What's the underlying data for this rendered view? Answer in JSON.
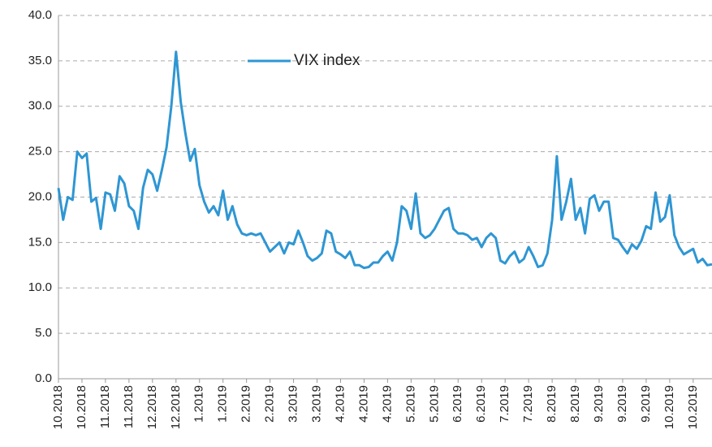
{
  "chart_data": {
    "type": "line",
    "categories": [
      "10.2018",
      null,
      null,
      null,
      null,
      "10.2018",
      null,
      null,
      null,
      null,
      "11.2018",
      null,
      null,
      null,
      null,
      "11.2018",
      null,
      null,
      null,
      null,
      "12.2018",
      null,
      null,
      null,
      null,
      "12.2018",
      null,
      null,
      null,
      null,
      "1.2019",
      null,
      null,
      null,
      null,
      "1.2019",
      null,
      null,
      null,
      null,
      "2.2019",
      null,
      null,
      null,
      null,
      "2.2019",
      null,
      null,
      null,
      null,
      "3.2019",
      null,
      null,
      null,
      null,
      "3.2019",
      null,
      null,
      null,
      null,
      "4.2019",
      null,
      null,
      null,
      null,
      "4.2019",
      null,
      null,
      null,
      null,
      "4.2019",
      null,
      null,
      null,
      null,
      "5.2019",
      null,
      null,
      null,
      null,
      "5.2019",
      null,
      null,
      null,
      null,
      "6.2019",
      null,
      null,
      null,
      null,
      "6.2019",
      null,
      null,
      null,
      null,
      "7.2019",
      null,
      null,
      null,
      null,
      "7.2019",
      null,
      null,
      null,
      null,
      "8.2019",
      null,
      null,
      null,
      null,
      "8.2019",
      null,
      null,
      null,
      null,
      "9.2019",
      null,
      null,
      null,
      null,
      "9.2019",
      null,
      null,
      null,
      null,
      "9.2019",
      null,
      null,
      null,
      null,
      "10.2019",
      null,
      null,
      null,
      null,
      "10.2019",
      null,
      null,
      null,
      null
    ],
    "series": [
      {
        "name": "VIX index",
        "color": "#2e96d3",
        "values": [
          21,
          17.5,
          20,
          19.7,
          25,
          24.3,
          24.8,
          19.5,
          19.9,
          16.5,
          20.5,
          20.3,
          18.5,
          22.3,
          21.5,
          19,
          18.5,
          16.5,
          21,
          23,
          22.5,
          20.7,
          23,
          25.5,
          30,
          36,
          30.5,
          27,
          24,
          25.3,
          21.3,
          19.5,
          18.3,
          19,
          18,
          20.7,
          17.5,
          19,
          17,
          16,
          15.8,
          16,
          15.8,
          16,
          15,
          14,
          14.5,
          15,
          13.8,
          15,
          14.8,
          16.3,
          15,
          13.5,
          13,
          13.3,
          13.8,
          16.3,
          16,
          14,
          13.7,
          13.3,
          14,
          12.5,
          12.5,
          12.2,
          12.3,
          12.8,
          12.8,
          13.5,
          14,
          13,
          15,
          19,
          18.5,
          16.5,
          20.4,
          16,
          15.5,
          15.8,
          16.5,
          17.5,
          18.5,
          18.8,
          16.5,
          16,
          16,
          15.8,
          15.3,
          15.5,
          14.5,
          15.5,
          16,
          15.5,
          13,
          12.7,
          13.5,
          14,
          12.8,
          13.2,
          14.5,
          13.5,
          12.3,
          12.5,
          13.8,
          17.5,
          24.5,
          17.5,
          19.5,
          22,
          17.5,
          18.8,
          16,
          19.8,
          20.2,
          18.5,
          19.5,
          19.5,
          15.5,
          15.3,
          14.5,
          13.8,
          14.8,
          14.3,
          15.2,
          16.8,
          16.5,
          20.5,
          17.3,
          17.8,
          20.2,
          15.8,
          14.5,
          13.7,
          14,
          14.3,
          12.8,
          13.2,
          12.5,
          12.6
        ]
      }
    ],
    "ylim": [
      0,
      40
    ],
    "yticks": [
      {
        "value": 0,
        "label": "0.0"
      },
      {
        "value": 5,
        "label": "5.0"
      },
      {
        "value": 10,
        "label": "10.0"
      },
      {
        "value": 15,
        "label": "15.0"
      },
      {
        "value": 20,
        "label": "20.0"
      },
      {
        "value": 25,
        "label": "25.0"
      },
      {
        "value": 30,
        "label": "30.0"
      },
      {
        "value": 35,
        "label": "35.0"
      },
      {
        "value": 40,
        "label": "40.0"
      }
    ],
    "grid": true,
    "legend": "top"
  }
}
